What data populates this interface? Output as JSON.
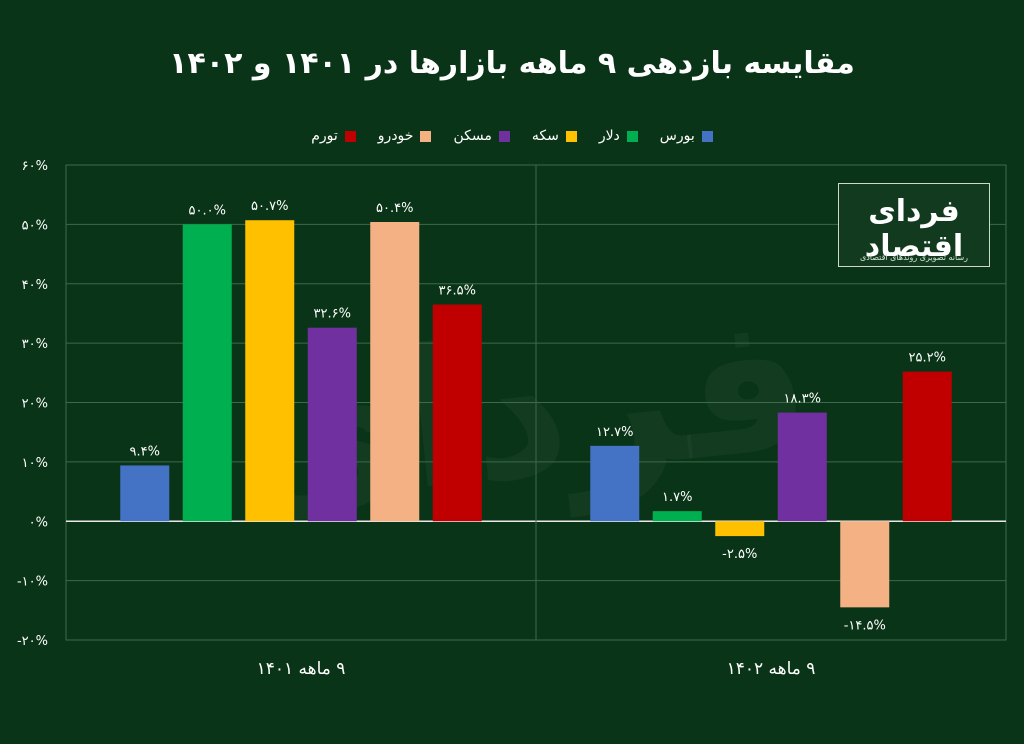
{
  "title": "مقایسه بازدهی ۹ ماهه بازارها در ۱۴۰۱ و ۱۴۰۲",
  "logo": {
    "main": "فردای اقتصاد",
    "sub": "رسانه تصویری روندهای اقتصادی"
  },
  "chart_data": {
    "type": "bar",
    "categories": [
      "۹ ماهه ۱۴۰۱",
      "۹ ماهه ۱۴۰۲"
    ],
    "series": [
      {
        "name": "بورس",
        "color": "#4472c4",
        "values": [
          9.4,
          12.7
        ],
        "labels": [
          "۹.۴%",
          "۱۲.۷%"
        ]
      },
      {
        "name": "دلار",
        "color": "#00b050",
        "values": [
          50.0,
          1.7
        ],
        "labels": [
          "۵۰.۰%",
          "۱.۷%"
        ]
      },
      {
        "name": "سکه",
        "color": "#ffc000",
        "values": [
          50.7,
          -2.5
        ],
        "labels": [
          "۵۰.۷%",
          "-۲.۵%"
        ]
      },
      {
        "name": "مسکن",
        "color": "#7030a0",
        "values": [
          32.6,
          18.3
        ],
        "labels": [
          "۳۲.۶%",
          "۱۸.۳%"
        ]
      },
      {
        "name": "خودرو",
        "color": "#f4b183",
        "values": [
          50.4,
          -14.5
        ],
        "labels": [
          "۵۰.۴%",
          "-۱۴.۵%"
        ]
      },
      {
        "name": "تورم",
        "color": "#c00000",
        "values": [
          36.5,
          25.2
        ],
        "labels": [
          "۳۶.۵%",
          "۲۵.۲%"
        ]
      }
    ],
    "ylim": [
      -20,
      60
    ],
    "yticks": [
      "-۲۰%",
      "-۱۰%",
      "۰%",
      "۱۰%",
      "۲۰%",
      "۳۰%",
      "۴۰%",
      "۵۰%",
      "۶۰%"
    ],
    "ytick_values": [
      -20,
      -10,
      0,
      10,
      20,
      30,
      40,
      50,
      60
    ],
    "grid": true,
    "legend_position": "top-center"
  }
}
